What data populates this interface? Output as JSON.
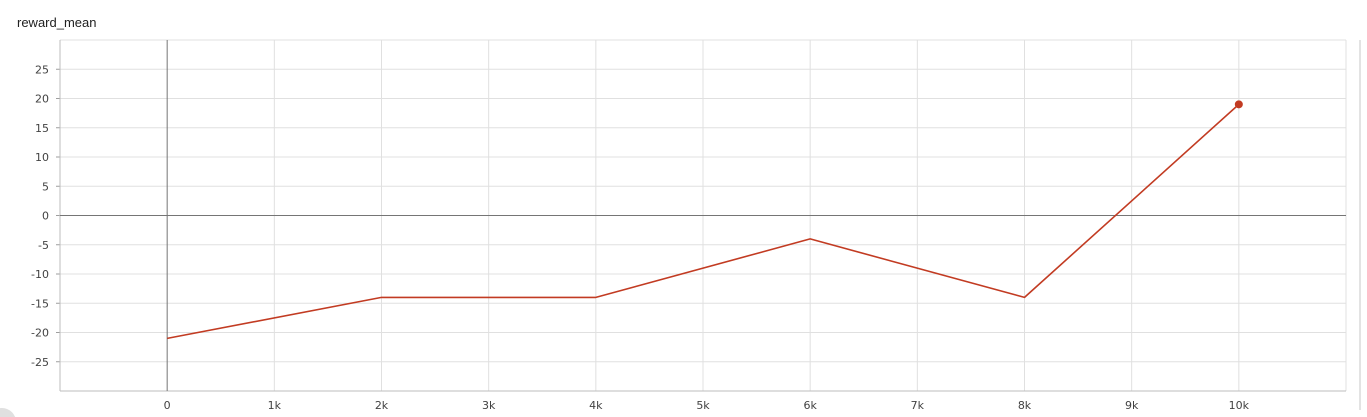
{
  "chart_data": {
    "type": "line",
    "title": "reward_mean",
    "xlabel": "",
    "ylabel": "",
    "x_ticks": [
      "0",
      "1k",
      "2k",
      "3k",
      "4k",
      "5k",
      "6k",
      "7k",
      "8k",
      "9k",
      "10k"
    ],
    "y_ticks": [
      "25",
      "20",
      "15",
      "10",
      "5",
      "0",
      "-5",
      "-10",
      "-15",
      "-20",
      "-25"
    ],
    "xlim": [
      -1000,
      11000
    ],
    "ylim": [
      -30,
      30
    ],
    "grid": true,
    "series": [
      {
        "color": "#c23b22",
        "points": [
          {
            "x": 0,
            "y": -21
          },
          {
            "x": 2000,
            "y": -14
          },
          {
            "x": 4000,
            "y": -14
          },
          {
            "x": 6000,
            "y": -4
          },
          {
            "x": 8000,
            "y": -14
          },
          {
            "x": 10000,
            "y": 19
          }
        ]
      }
    ]
  }
}
